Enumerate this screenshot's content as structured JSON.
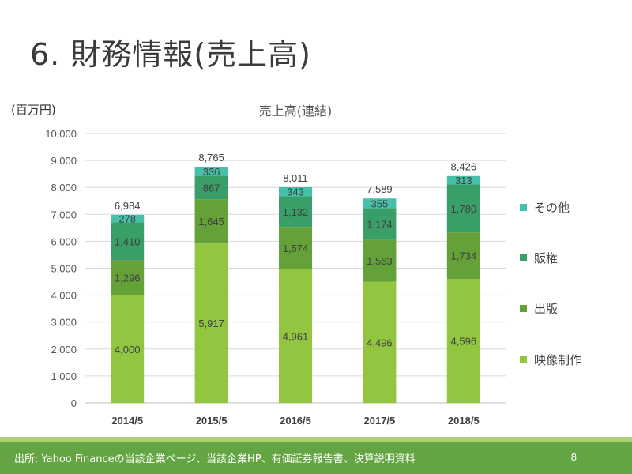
{
  "slide": {
    "title": "6. 財務情報(売上高)",
    "unit_label": "(百万円)",
    "source_note": "出所: Yahoo Financeの当該企業ページ、当該企業HP、有価証券報告書、決算説明資料",
    "page_number": "8"
  },
  "colors": {
    "映像制作": "#92c640",
    "出版": "#64a139",
    "販権": "#3a9e68",
    "その他": "#46c0a8"
  },
  "chart_data": {
    "type": "bar",
    "stacked": true,
    "title": "売上高(連結)",
    "xlabel": "",
    "ylabel": "(百万円)",
    "categories": [
      "2014/5",
      "2015/5",
      "2016/5",
      "2017/5",
      "2018/5"
    ],
    "series": [
      {
        "name": "映像制作",
        "values": [
          4000,
          5917,
          4961,
          4496,
          4596
        ]
      },
      {
        "name": "出版",
        "values": [
          1296,
          1645,
          1574,
          1563,
          1734
        ]
      },
      {
        "name": "販権",
        "values": [
          1410,
          867,
          1132,
          1174,
          1780
        ]
      },
      {
        "name": "その他",
        "values": [
          278,
          336,
          343,
          355,
          313
        ]
      }
    ],
    "totals": [
      6984,
      8765,
      8011,
      7589,
      8426
    ],
    "ylim": [
      0,
      10000
    ],
    "yticks": [
      0,
      1000,
      2000,
      3000,
      4000,
      5000,
      6000,
      7000,
      8000,
      9000,
      10000
    ],
    "grid": true,
    "legend_position": "right",
    "legend_order": [
      "その他",
      "販権",
      "出版",
      "映像制作"
    ]
  }
}
